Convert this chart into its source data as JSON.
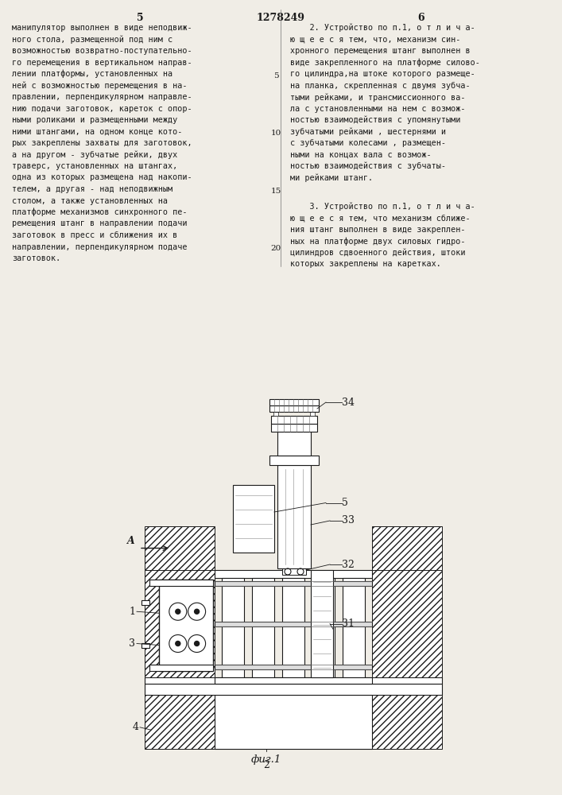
{
  "title": "1278249",
  "page_left": "5",
  "page_right": "6",
  "bg_color": "#f0ede6",
  "text_color": "#1a1a1a",
  "line_color": "#1a1a1a",
  "left_text_lines": [
    "манипулятор выполнен в виде неподвиж-",
    "ного стола, размещенной под ним с",
    "возможностью возвратно-поступательно-",
    "го перемещения в вертикальном направ-",
    "лении платформы, установленных на",
    "ней с возможностью перемещения в на-",
    "правлении, перпендикулярном направле-",
    "нию подачи заготовок, кареток с опор-",
    "ными роликами и размещенными между",
    "ними штангами, на одном конце кото-",
    "рых закреплены захваты для заготовок,",
    "а на другом - зубчатые рейки, двух",
    "траверс, установленных на штангах,",
    "одна из которых размещена над накопи-",
    "телем, а другая - над неподвижным",
    "столом, а также установленных на",
    "платформе механизмов синхронного пе-",
    "ремещения штанг в направлении подачи",
    "заготовок в пресс и сближения их в",
    "направлении, перпендикулярном подаче",
    "заготовок."
  ],
  "right_text_lines_1": [
    "    2. Устройство по п.1, о т л и ч а-",
    "ю щ е е с я тем, что, механизм син-",
    "хронного перемещения штанг выполнен в",
    "виде закрепленного на платформе силово-",
    "го цилиндра,на штоке которого размеще-",
    "на планка, скрепленная с двумя зубча-",
    "тыми рейками, и трансмиссионного ва-",
    "ла с установленными на нем с возмож-",
    "ностью взаимодействия с упомянутыми",
    "зубчатыми рейками , шестернями и",
    "с зубчатыми колесами , размещен-",
    "ными на концах вала с возмож-",
    "ностью взаимодействия с зубчаты-",
    "ми рейками штанг."
  ],
  "right_text_lines_2": [
    "    3. Устройство по п.1, о т л и ч а-",
    "ю щ е е с я тем, что механизм сближе-",
    "ния штанг выполнен в виде закреплен-",
    "ных на платформе двух силовых гидро-",
    "цилиндров сдвоенного действия, штоки",
    "которых закреплены на каретках."
  ],
  "line_nums": [
    "5",
    "10",
    "15",
    "20"
  ],
  "caption": "фиг.1"
}
